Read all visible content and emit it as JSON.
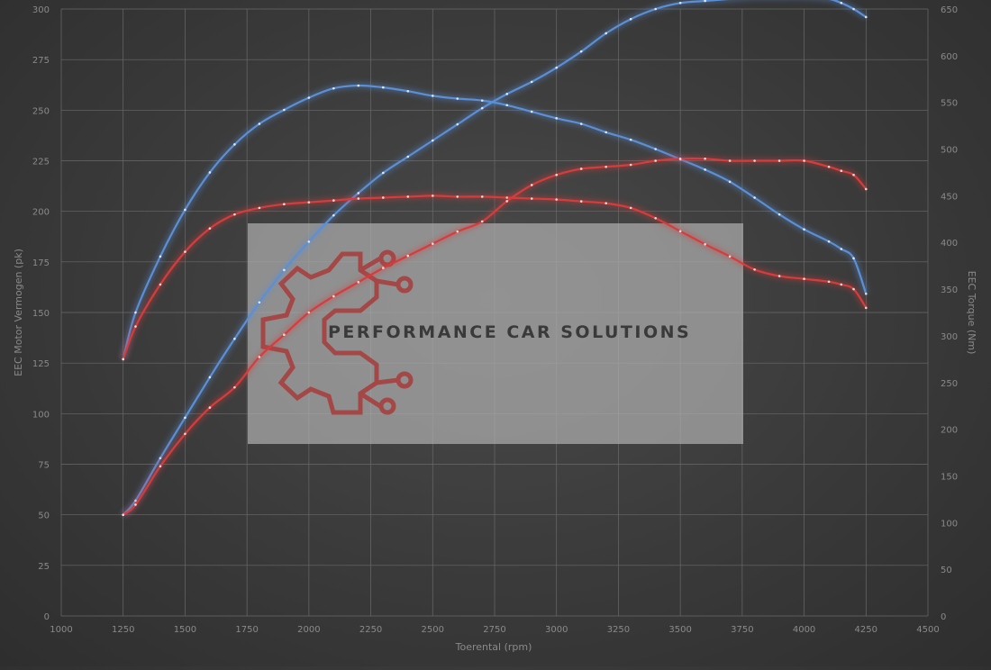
{
  "chart_data": {
    "type": "line",
    "xlabel": "Toerental (rpm)",
    "ylabel": "EEC Motor Vermogen (pk)",
    "y2label": "EEC Torque (Nm)",
    "xlim": [
      1000,
      4500
    ],
    "xticks": [
      1000,
      1250,
      1500,
      1750,
      2000,
      2250,
      2500,
      2750,
      3000,
      3250,
      3500,
      3750,
      4000,
      4250,
      4500
    ],
    "ylim": [
      0,
      300
    ],
    "yticks": [
      0,
      25,
      50,
      75,
      100,
      125,
      150,
      175,
      200,
      225,
      250,
      275,
      300
    ],
    "y2lim": [
      0,
      650
    ],
    "y2ticks": [
      0,
      50,
      100,
      150,
      200,
      250,
      300,
      350,
      400,
      450,
      500,
      550,
      600,
      650
    ],
    "grid": true,
    "watermark": "PERFORMANCE CAR SOLUTIONS",
    "series": [
      {
        "kind": "torque-tuned",
        "axis": "y2",
        "color": "#5b8fd6",
        "x": [
          1250,
          1300,
          1400,
          1500,
          1600,
          1700,
          1800,
          1900,
          2000,
          2100,
          2200,
          2300,
          2400,
          2500,
          2600,
          2700,
          2800,
          2900,
          3000,
          3100,
          3200,
          3300,
          3400,
          3500,
          3600,
          3700,
          3800,
          3900,
          4000,
          4100,
          4150,
          4200,
          4250
        ],
        "y": [
          275,
          325,
          385,
          435,
          475,
          505,
          527,
          542,
          555,
          565,
          568,
          566,
          562,
          557,
          554,
          552,
          547,
          540,
          533,
          527,
          518,
          510,
          500,
          489,
          478,
          465,
          448,
          430,
          414,
          401,
          393,
          383,
          345
        ]
      },
      {
        "kind": "power-tuned",
        "axis": "y",
        "color": "#5b8fd6",
        "x": [
          1250,
          1300,
          1400,
          1500,
          1600,
          1700,
          1800,
          1900,
          2000,
          2100,
          2200,
          2300,
          2400,
          2500,
          2600,
          2700,
          2800,
          2900,
          3000,
          3100,
          3200,
          3300,
          3400,
          3500,
          3600,
          3700,
          3800,
          3900,
          4000,
          4100,
          4150,
          4200,
          4250
        ],
        "y": [
          50,
          57,
          78,
          98,
          118,
          137,
          155,
          171,
          185,
          198,
          209,
          219,
          227,
          235,
          243,
          251,
          258,
          264,
          271,
          279,
          288,
          295,
          300,
          303,
          304,
          305,
          306,
          306,
          306,
          305,
          303,
          300,
          296
        ]
      },
      {
        "kind": "torque-stock",
        "axis": "y2",
        "color": "#d63c3c",
        "x": [
          1250,
          1300,
          1400,
          1500,
          1600,
          1700,
          1800,
          1900,
          2000,
          2100,
          2200,
          2300,
          2400,
          2500,
          2600,
          2700,
          2800,
          2900,
          3000,
          3100,
          3200,
          3300,
          3400,
          3500,
          3600,
          3700,
          3800,
          3900,
          4000,
          4100,
          4150,
          4200,
          4250
        ],
        "y": [
          275,
          310,
          355,
          390,
          415,
          430,
          437,
          441,
          443,
          445,
          447,
          448,
          449,
          450,
          449,
          449,
          448,
          447,
          446,
          444,
          442,
          437,
          426,
          412,
          398,
          385,
          371,
          364,
          361,
          358,
          355,
          350,
          330
        ]
      },
      {
        "kind": "power-stock",
        "axis": "y",
        "color": "#d63c3c",
        "x": [
          1250,
          1300,
          1400,
          1500,
          1600,
          1700,
          1800,
          1900,
          2000,
          2100,
          2200,
          2300,
          2400,
          2500,
          2600,
          2700,
          2800,
          2900,
          3000,
          3100,
          3200,
          3300,
          3400,
          3500,
          3600,
          3700,
          3800,
          3900,
          4000,
          4100,
          4150,
          4200,
          4250
        ],
        "y": [
          50,
          55,
          74,
          90,
          103,
          113,
          128,
          139,
          150,
          158,
          165,
          172,
          178,
          184,
          190,
          195,
          205,
          213,
          218,
          221,
          222,
          223,
          225,
          226,
          226,
          225,
          225,
          225,
          225,
          222,
          220,
          218,
          211
        ]
      }
    ]
  }
}
